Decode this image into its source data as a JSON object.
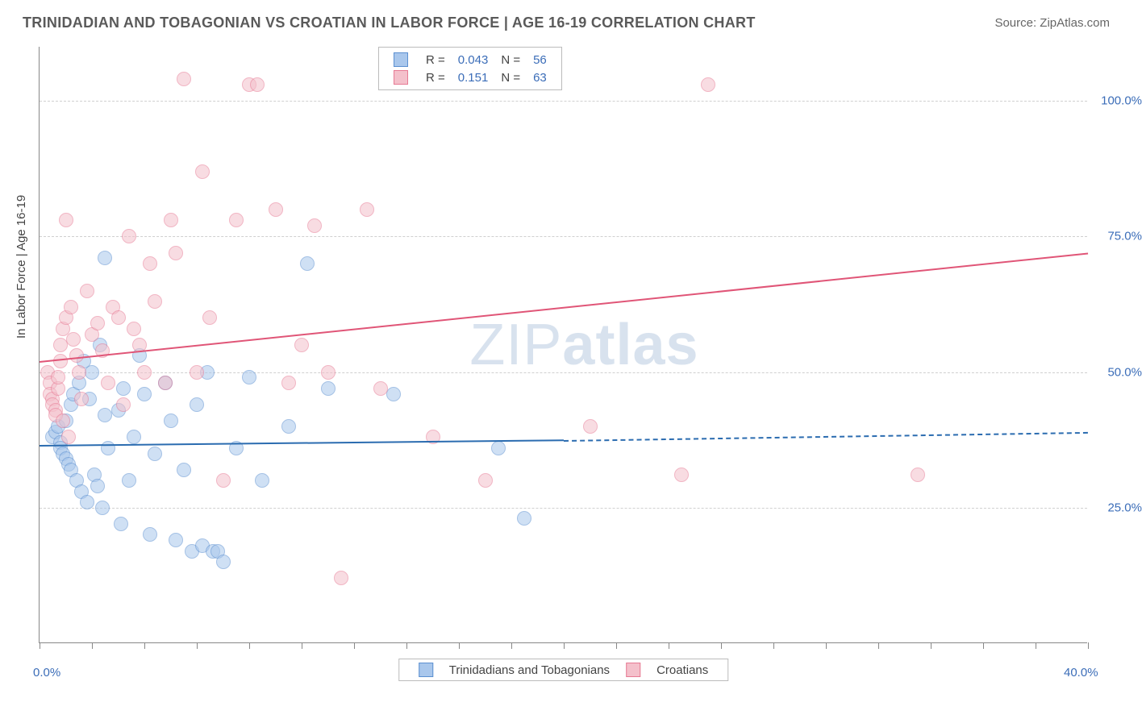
{
  "title": "TRINIDADIAN AND TOBAGONIAN VS CROATIAN IN LABOR FORCE | AGE 16-19 CORRELATION CHART",
  "source": "Source: ZipAtlas.com",
  "watermark_plain": "ZIP",
  "watermark_bold": "atlas",
  "chart": {
    "type": "scatter",
    "y_axis_title": "In Labor Force | Age 16-19",
    "xlim": [
      0,
      40
    ],
    "ylim": [
      0,
      110
    ],
    "x_ticks": [
      0,
      20,
      40
    ],
    "x_tick_labels": [
      "0.0%",
      "",
      "40.0%"
    ],
    "x_minor_ticks": [
      2,
      4,
      6,
      8,
      10,
      12,
      14,
      16,
      18,
      22,
      24,
      26,
      28,
      30,
      32,
      34,
      36,
      38
    ],
    "y_gridlines": [
      25,
      50,
      75,
      100
    ],
    "y_tick_labels": [
      "25.0%",
      "50.0%",
      "75.0%",
      "100.0%"
    ],
    "background_color": "#ffffff",
    "grid_color": "#d0d0d0",
    "axis_color": "#888888",
    "label_color": "#3b6db8",
    "series": [
      {
        "name": "Trinidadians and Tobagonians",
        "color_fill": "#a9c7ec",
        "color_stroke": "#5b8fd0",
        "trend_color": "#2b6cb0",
        "r": 0.043,
        "n": 56,
        "trend": {
          "x1": 0,
          "y1": 36.5,
          "x2": 20,
          "y2": 37.5,
          "x2_dash": 40,
          "y2_dash": 39
        },
        "points": [
          [
            0.5,
            38
          ],
          [
            0.6,
            39
          ],
          [
            0.7,
            40
          ],
          [
            0.8,
            37
          ],
          [
            0.8,
            36
          ],
          [
            0.9,
            35
          ],
          [
            1.0,
            34
          ],
          [
            1.0,
            41
          ],
          [
            1.1,
            33
          ],
          [
            1.2,
            32
          ],
          [
            1.2,
            44
          ],
          [
            1.3,
            46
          ],
          [
            1.4,
            30
          ],
          [
            1.5,
            48
          ],
          [
            1.6,
            28
          ],
          [
            1.7,
            52
          ],
          [
            1.8,
            26
          ],
          [
            1.9,
            45
          ],
          [
            2.0,
            50
          ],
          [
            2.1,
            31
          ],
          [
            2.2,
            29
          ],
          [
            2.3,
            55
          ],
          [
            2.4,
            25
          ],
          [
            2.5,
            42
          ],
          [
            2.6,
            36
          ],
          [
            2.5,
            71
          ],
          [
            3.0,
            43
          ],
          [
            3.1,
            22
          ],
          [
            3.2,
            47
          ],
          [
            3.4,
            30
          ],
          [
            3.6,
            38
          ],
          [
            3.8,
            53
          ],
          [
            4.0,
            46
          ],
          [
            4.2,
            20
          ],
          [
            4.4,
            35
          ],
          [
            4.8,
            48
          ],
          [
            5.0,
            41
          ],
          [
            5.2,
            19
          ],
          [
            5.5,
            32
          ],
          [
            5.8,
            17
          ],
          [
            6.0,
            44
          ],
          [
            6.2,
            18
          ],
          [
            6.4,
            50
          ],
          [
            6.6,
            17
          ],
          [
            6.8,
            17
          ],
          [
            7.0,
            15
          ],
          [
            7.5,
            36
          ],
          [
            8.0,
            49
          ],
          [
            8.5,
            30
          ],
          [
            9.5,
            40
          ],
          [
            10.2,
            70
          ],
          [
            11.0,
            47
          ],
          [
            13.5,
            46
          ],
          [
            17.5,
            36
          ],
          [
            18.5,
            23
          ]
        ]
      },
      {
        "name": "Croatians",
        "color_fill": "#f4c0cb",
        "color_stroke": "#e77a94",
        "trend_color": "#e05577",
        "r": 0.151,
        "n": 63,
        "trend": {
          "x1": 0,
          "y1": 52,
          "x2": 40,
          "y2": 72
        },
        "points": [
          [
            0.3,
            50
          ],
          [
            0.4,
            48
          ],
          [
            0.4,
            46
          ],
          [
            0.5,
            45
          ],
          [
            0.5,
            44
          ],
          [
            0.6,
            43
          ],
          [
            0.6,
            42
          ],
          [
            0.7,
            47
          ],
          [
            0.7,
            49
          ],
          [
            0.8,
            52
          ],
          [
            0.8,
            55
          ],
          [
            0.9,
            58
          ],
          [
            0.9,
            41
          ],
          [
            1.0,
            78
          ],
          [
            1.0,
            60
          ],
          [
            1.1,
            38
          ],
          [
            1.2,
            62
          ],
          [
            1.3,
            56
          ],
          [
            1.4,
            53
          ],
          [
            1.5,
            50
          ],
          [
            1.6,
            45
          ],
          [
            1.8,
            65
          ],
          [
            2.0,
            57
          ],
          [
            2.2,
            59
          ],
          [
            2.4,
            54
          ],
          [
            2.6,
            48
          ],
          [
            2.8,
            62
          ],
          [
            3.0,
            60
          ],
          [
            3.2,
            44
          ],
          [
            3.4,
            75
          ],
          [
            3.6,
            58
          ],
          [
            3.8,
            55
          ],
          [
            4.0,
            50
          ],
          [
            4.2,
            70
          ],
          [
            4.4,
            63
          ],
          [
            4.8,
            48
          ],
          [
            5.0,
            78
          ],
          [
            5.2,
            72
          ],
          [
            5.5,
            104
          ],
          [
            6.0,
            50
          ],
          [
            6.2,
            87
          ],
          [
            6.5,
            60
          ],
          [
            7.0,
            30
          ],
          [
            7.5,
            78
          ],
          [
            8.0,
            103
          ],
          [
            8.3,
            103
          ],
          [
            9.0,
            80
          ],
          [
            9.5,
            48
          ],
          [
            10.0,
            55
          ],
          [
            10.5,
            77
          ],
          [
            11.0,
            50
          ],
          [
            11.5,
            12
          ],
          [
            12.5,
            80
          ],
          [
            13.0,
            47
          ],
          [
            15.0,
            38
          ],
          [
            17.0,
            30
          ],
          [
            21.0,
            40
          ],
          [
            24.5,
            31
          ],
          [
            25.5,
            103
          ],
          [
            33.5,
            31
          ]
        ]
      }
    ],
    "legend_top": {
      "rows": [
        {
          "series_idx": 0,
          "r_label": "R =",
          "r": "0.043",
          "n_label": "N =",
          "n": "56"
        },
        {
          "series_idx": 1,
          "r_label": "R =",
          "r": "0.151",
          "n_label": "N =",
          "n": "63"
        }
      ]
    }
  }
}
